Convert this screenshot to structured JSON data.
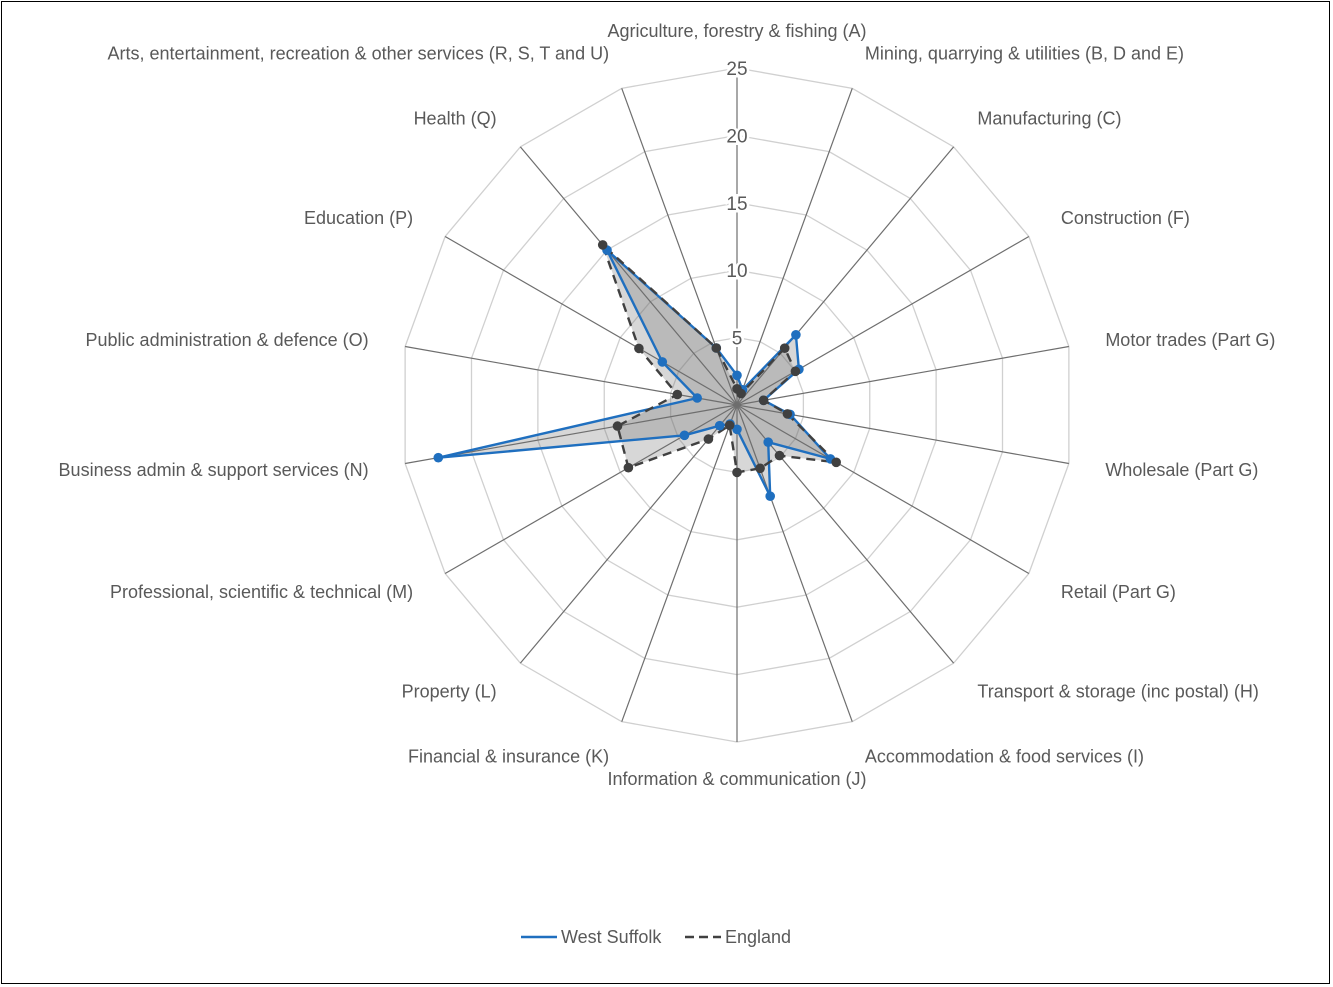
{
  "chart_data": {
    "type": "radar",
    "axis_range": [
      0,
      25
    ],
    "ticks": [
      5,
      10,
      15,
      20,
      25
    ],
    "categories": [
      "Agriculture, forestry & fishing (A)",
      "Mining, quarrying & utilities (B, D and E)",
      "Manufacturing (C)",
      "Construction (F)",
      "Motor trades (Part G)",
      "Wholesale (Part G)",
      "Retail (Part G)",
      "Transport & storage (inc postal) (H)",
      "Accommodation & food services (I)",
      "Information & communication (J)",
      "Financial & insurance (K)",
      "Property (L)",
      "Professional, scientific & technical (M)",
      "Business admin & support services (N)",
      "Public administration & defence (O)",
      "Education (P)",
      "Health (Q)",
      "Arts, entertainment, recreation & other services (R, S, T and U)"
    ],
    "series": [
      {
        "name": "West Suffolk",
        "color": "#1F6FBF",
        "dash": "solid",
        "values": [
          2.2,
          1.2,
          6.8,
          5.3,
          2.0,
          4.0,
          8.0,
          3.6,
          7.2,
          1.8,
          1.5,
          2.0,
          4.5,
          22.5,
          3.0,
          6.4,
          15.0,
          4.5
        ]
      },
      {
        "name": "England",
        "color": "#404040",
        "dash": "dashed",
        "values": [
          1.2,
          0.9,
          5.5,
          5.0,
          2.0,
          3.8,
          8.5,
          4.9,
          5.0,
          5.0,
          1.6,
          3.3,
          9.3,
          9.0,
          4.5,
          8.4,
          15.5,
          4.5
        ]
      }
    ],
    "legend": {
      "position": "bottom"
    },
    "grid": true
  }
}
